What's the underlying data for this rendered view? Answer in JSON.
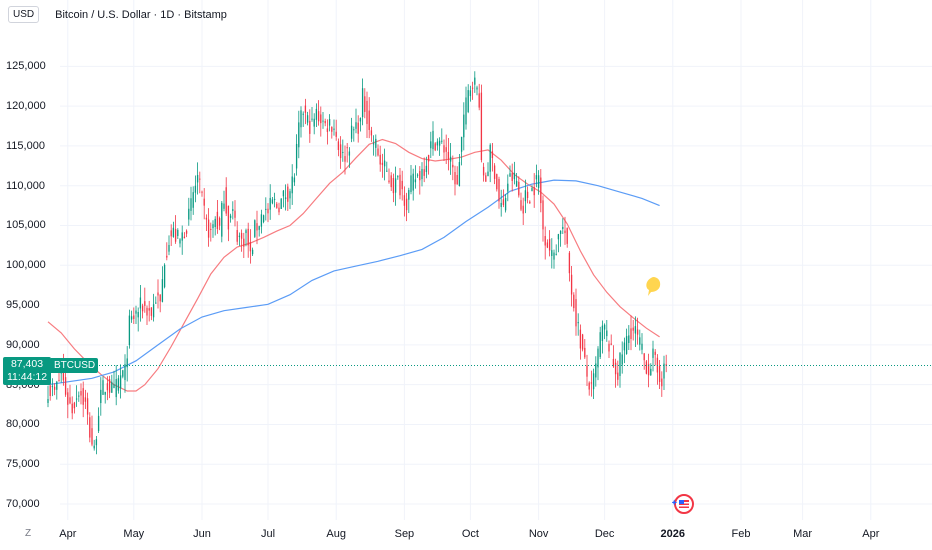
{
  "header": {
    "currency": "USD",
    "title": "Bitcoin / U.S. Dollar · 1D · Bitstamp"
  },
  "price_label": {
    "price": "87,403",
    "countdown": "11:44:12",
    "symbol": "BTCUSD",
    "color": "#089981"
  },
  "axis_controls": {
    "scale_button": "Z"
  },
  "colors": {
    "up": "#089981",
    "down": "#f23645",
    "ma_fast": "#f77c80",
    "ma_slow": "#5b9cf6",
    "grid": "#f0f3fa"
  },
  "icons": {
    "badge": "flag-badge-icon",
    "marker": "idea-marker-icon"
  },
  "chart_data": {
    "type": "candlestick",
    "title": "Bitcoin / U.S. Dollar · 1D · Bitstamp",
    "ylabel": "USD",
    "ylim": [
      69000,
      126800
    ],
    "y_ticks": [
      "125,000",
      "120,000",
      "115,000",
      "110,000",
      "105,000",
      "100,000",
      "95,000",
      "90,000",
      "85,000",
      "80,000",
      "75,000",
      "70,000"
    ],
    "y_tick_values": [
      125000,
      120000,
      115000,
      110000,
      105000,
      100000,
      95000,
      90000,
      85000,
      80000,
      75000,
      70000
    ],
    "x_ticks": [
      "Apr",
      "May",
      "Jun",
      "Jul",
      "Aug",
      "Sep",
      "Oct",
      "Nov",
      "Dec",
      "2026",
      "Feb",
      "Mar",
      "Apr"
    ],
    "x_tick_bold": [
      false,
      false,
      false,
      false,
      false,
      false,
      false,
      false,
      false,
      true,
      false,
      false,
      false
    ],
    "x_tick_days": [
      9,
      39,
      70,
      100,
      131,
      162,
      192,
      223,
      253,
      284,
      315,
      343,
      374
    ],
    "last_price": 87403,
    "close_path": [
      [
        0,
        84500
      ],
      [
        3,
        84000
      ],
      [
        6,
        86500
      ],
      [
        9,
        83000
      ],
      [
        11,
        82000
      ],
      [
        14,
        84500
      ],
      [
        17,
        82500
      ],
      [
        19,
        79000
      ],
      [
        21,
        76500
      ],
      [
        23,
        82000
      ],
      [
        25,
        84500
      ],
      [
        27,
        85000
      ],
      [
        30,
        84000
      ],
      [
        33,
        86000
      ],
      [
        35,
        86500
      ],
      [
        37,
        92500
      ],
      [
        40,
        94000
      ],
      [
        43,
        95000
      ],
      [
        45,
        94500
      ],
      [
        47,
        94000
      ],
      [
        49,
        96000
      ],
      [
        51,
        95000
      ],
      [
        53,
        101000
      ],
      [
        55,
        103500
      ],
      [
        57,
        104000
      ],
      [
        60,
        103000
      ],
      [
        62,
        104500
      ],
      [
        64,
        106000
      ],
      [
        66,
        109000
      ],
      [
        68,
        111000
      ],
      [
        70,
        108000
      ],
      [
        72,
        105000
      ],
      [
        74,
        104000
      ],
      [
        76,
        106000
      ],
      [
        78,
        104500
      ],
      [
        80,
        109000
      ],
      [
        82,
        105500
      ],
      [
        84,
        106500
      ],
      [
        86,
        104000
      ],
      [
        88,
        103000
      ],
      [
        90,
        104000
      ],
      [
        92,
        101000
      ],
      [
        94,
        104500
      ],
      [
        96,
        105500
      ],
      [
        98,
        107000
      ],
      [
        100,
        106500
      ],
      [
        102,
        108000
      ],
      [
        104,
        107500
      ],
      [
        106,
        108000
      ],
      [
        108,
        109000
      ],
      [
        110,
        109500
      ],
      [
        112,
        111500
      ],
      [
        114,
        117000
      ],
      [
        116,
        119500
      ],
      [
        118,
        118000
      ],
      [
        120,
        117500
      ],
      [
        122,
        119000
      ],
      [
        124,
        118500
      ],
      [
        126,
        117500
      ],
      [
        128,
        118000
      ],
      [
        130,
        117500
      ],
      [
        132,
        115000
      ],
      [
        134,
        113500
      ],
      [
        136,
        114500
      ],
      [
        138,
        116500
      ],
      [
        140,
        117500
      ],
      [
        142,
        118000
      ],
      [
        143,
        121000
      ],
      [
        145,
        119000
      ],
      [
        147,
        116000
      ],
      [
        149,
        115000
      ],
      [
        151,
        113000
      ],
      [
        153,
        112000
      ],
      [
        155,
        111000
      ],
      [
        157,
        110000
      ],
      [
        159,
        110500
      ],
      [
        161,
        109500
      ],
      [
        163,
        108000
      ],
      [
        165,
        110000
      ],
      [
        167,
        111000
      ],
      [
        169,
        111500
      ],
      [
        171,
        112500
      ],
      [
        173,
        114000
      ],
      [
        175,
        116000
      ],
      [
        177,
        115500
      ],
      [
        179,
        115000
      ],
      [
        181,
        114500
      ],
      [
        183,
        112500
      ],
      [
        185,
        111000
      ],
      [
        186,
        109500
      ],
      [
        187,
        113500
      ],
      [
        189,
        118500
      ],
      [
        191,
        121500
      ],
      [
        193,
        123500
      ],
      [
        195,
        122000
      ],
      [
        196,
        121000
      ],
      [
        197,
        112000
      ],
      [
        199,
        111000
      ],
      [
        201,
        114000
      ],
      [
        203,
        112000
      ],
      [
        205,
        108000
      ],
      [
        207,
        107000
      ],
      [
        209,
        110500
      ],
      [
        211,
        111000
      ],
      [
        213,
        110500
      ],
      [
        215,
        107000
      ],
      [
        217,
        108500
      ],
      [
        219,
        109000
      ],
      [
        221,
        110000
      ],
      [
        223,
        111000
      ],
      [
        225,
        104500
      ],
      [
        227,
        103000
      ],
      [
        229,
        101000
      ],
      [
        231,
        102500
      ],
      [
        233,
        105000
      ],
      [
        235,
        104000
      ],
      [
        237,
        99000
      ],
      [
        239,
        95000
      ],
      [
        241,
        92000
      ],
      [
        243,
        89000
      ],
      [
        245,
        86000
      ],
      [
        247,
        84000
      ],
      [
        249,
        87000
      ],
      [
        251,
        91000
      ],
      [
        253,
        92000
      ],
      [
        255,
        90000
      ],
      [
        257,
        87500
      ],
      [
        259,
        86500
      ],
      [
        261,
        89000
      ],
      [
        263,
        90500
      ],
      [
        265,
        92000
      ],
      [
        267,
        91500
      ],
      [
        269,
        90000
      ],
      [
        271,
        88000
      ],
      [
        273,
        87000
      ],
      [
        275,
        88500
      ],
      [
        277,
        86500
      ],
      [
        279,
        86000
      ],
      [
        281,
        87400
      ]
    ],
    "series": [
      {
        "name": "",
        "color": "#f77c80",
        "points": [
          [
            0,
            92900
          ],
          [
            6,
            91500
          ],
          [
            12,
            89500
          ],
          [
            18,
            87800
          ],
          [
            24,
            86300
          ],
          [
            30,
            85000
          ],
          [
            36,
            84200
          ],
          [
            40,
            84200
          ],
          [
            44,
            85000
          ],
          [
            50,
            87000
          ],
          [
            56,
            89800
          ],
          [
            62,
            92800
          ],
          [
            68,
            95800
          ],
          [
            74,
            98900
          ],
          [
            80,
            101000
          ],
          [
            86,
            102300
          ],
          [
            92,
            102800
          ],
          [
            98,
            103500
          ],
          [
            104,
            104300
          ],
          [
            110,
            105000
          ],
          [
            116,
            106500
          ],
          [
            122,
            108400
          ],
          [
            128,
            110300
          ],
          [
            134,
            111700
          ],
          [
            140,
            113500
          ],
          [
            146,
            115200
          ],
          [
            152,
            115800
          ],
          [
            158,
            115300
          ],
          [
            164,
            114200
          ],
          [
            170,
            113400
          ],
          [
            176,
            113100
          ],
          [
            182,
            113300
          ],
          [
            188,
            113600
          ],
          [
            194,
            114200
          ],
          [
            200,
            114500
          ],
          [
            206,
            113200
          ],
          [
            212,
            111400
          ],
          [
            218,
            110200
          ],
          [
            224,
            109200
          ],
          [
            230,
            107700
          ],
          [
            236,
            105200
          ],
          [
            242,
            101800
          ],
          [
            248,
            98800
          ],
          [
            254,
            96600
          ],
          [
            260,
            94800
          ],
          [
            266,
            93400
          ],
          [
            272,
            92100
          ],
          [
            278,
            91000
          ]
        ]
      },
      {
        "name": "",
        "color": "#5b9cf6",
        "points": [
          [
            0,
            85000
          ],
          [
            20,
            85800
          ],
          [
            30,
            86600
          ],
          [
            40,
            88000
          ],
          [
            50,
            90000
          ],
          [
            60,
            92000
          ],
          [
            70,
            93500
          ],
          [
            80,
            94300
          ],
          [
            90,
            94700
          ],
          [
            100,
            95100
          ],
          [
            110,
            96300
          ],
          [
            120,
            98100
          ],
          [
            130,
            99300
          ],
          [
            140,
            99900
          ],
          [
            150,
            100500
          ],
          [
            160,
            101200
          ],
          [
            170,
            102000
          ],
          [
            180,
            103500
          ],
          [
            190,
            105500
          ],
          [
            200,
            107300
          ],
          [
            210,
            109300
          ],
          [
            220,
            110200
          ],
          [
            230,
            110700
          ],
          [
            240,
            110600
          ],
          [
            250,
            110000
          ],
          [
            260,
            109200
          ],
          [
            270,
            108400
          ],
          [
            278,
            107500
          ]
        ]
      }
    ]
  }
}
